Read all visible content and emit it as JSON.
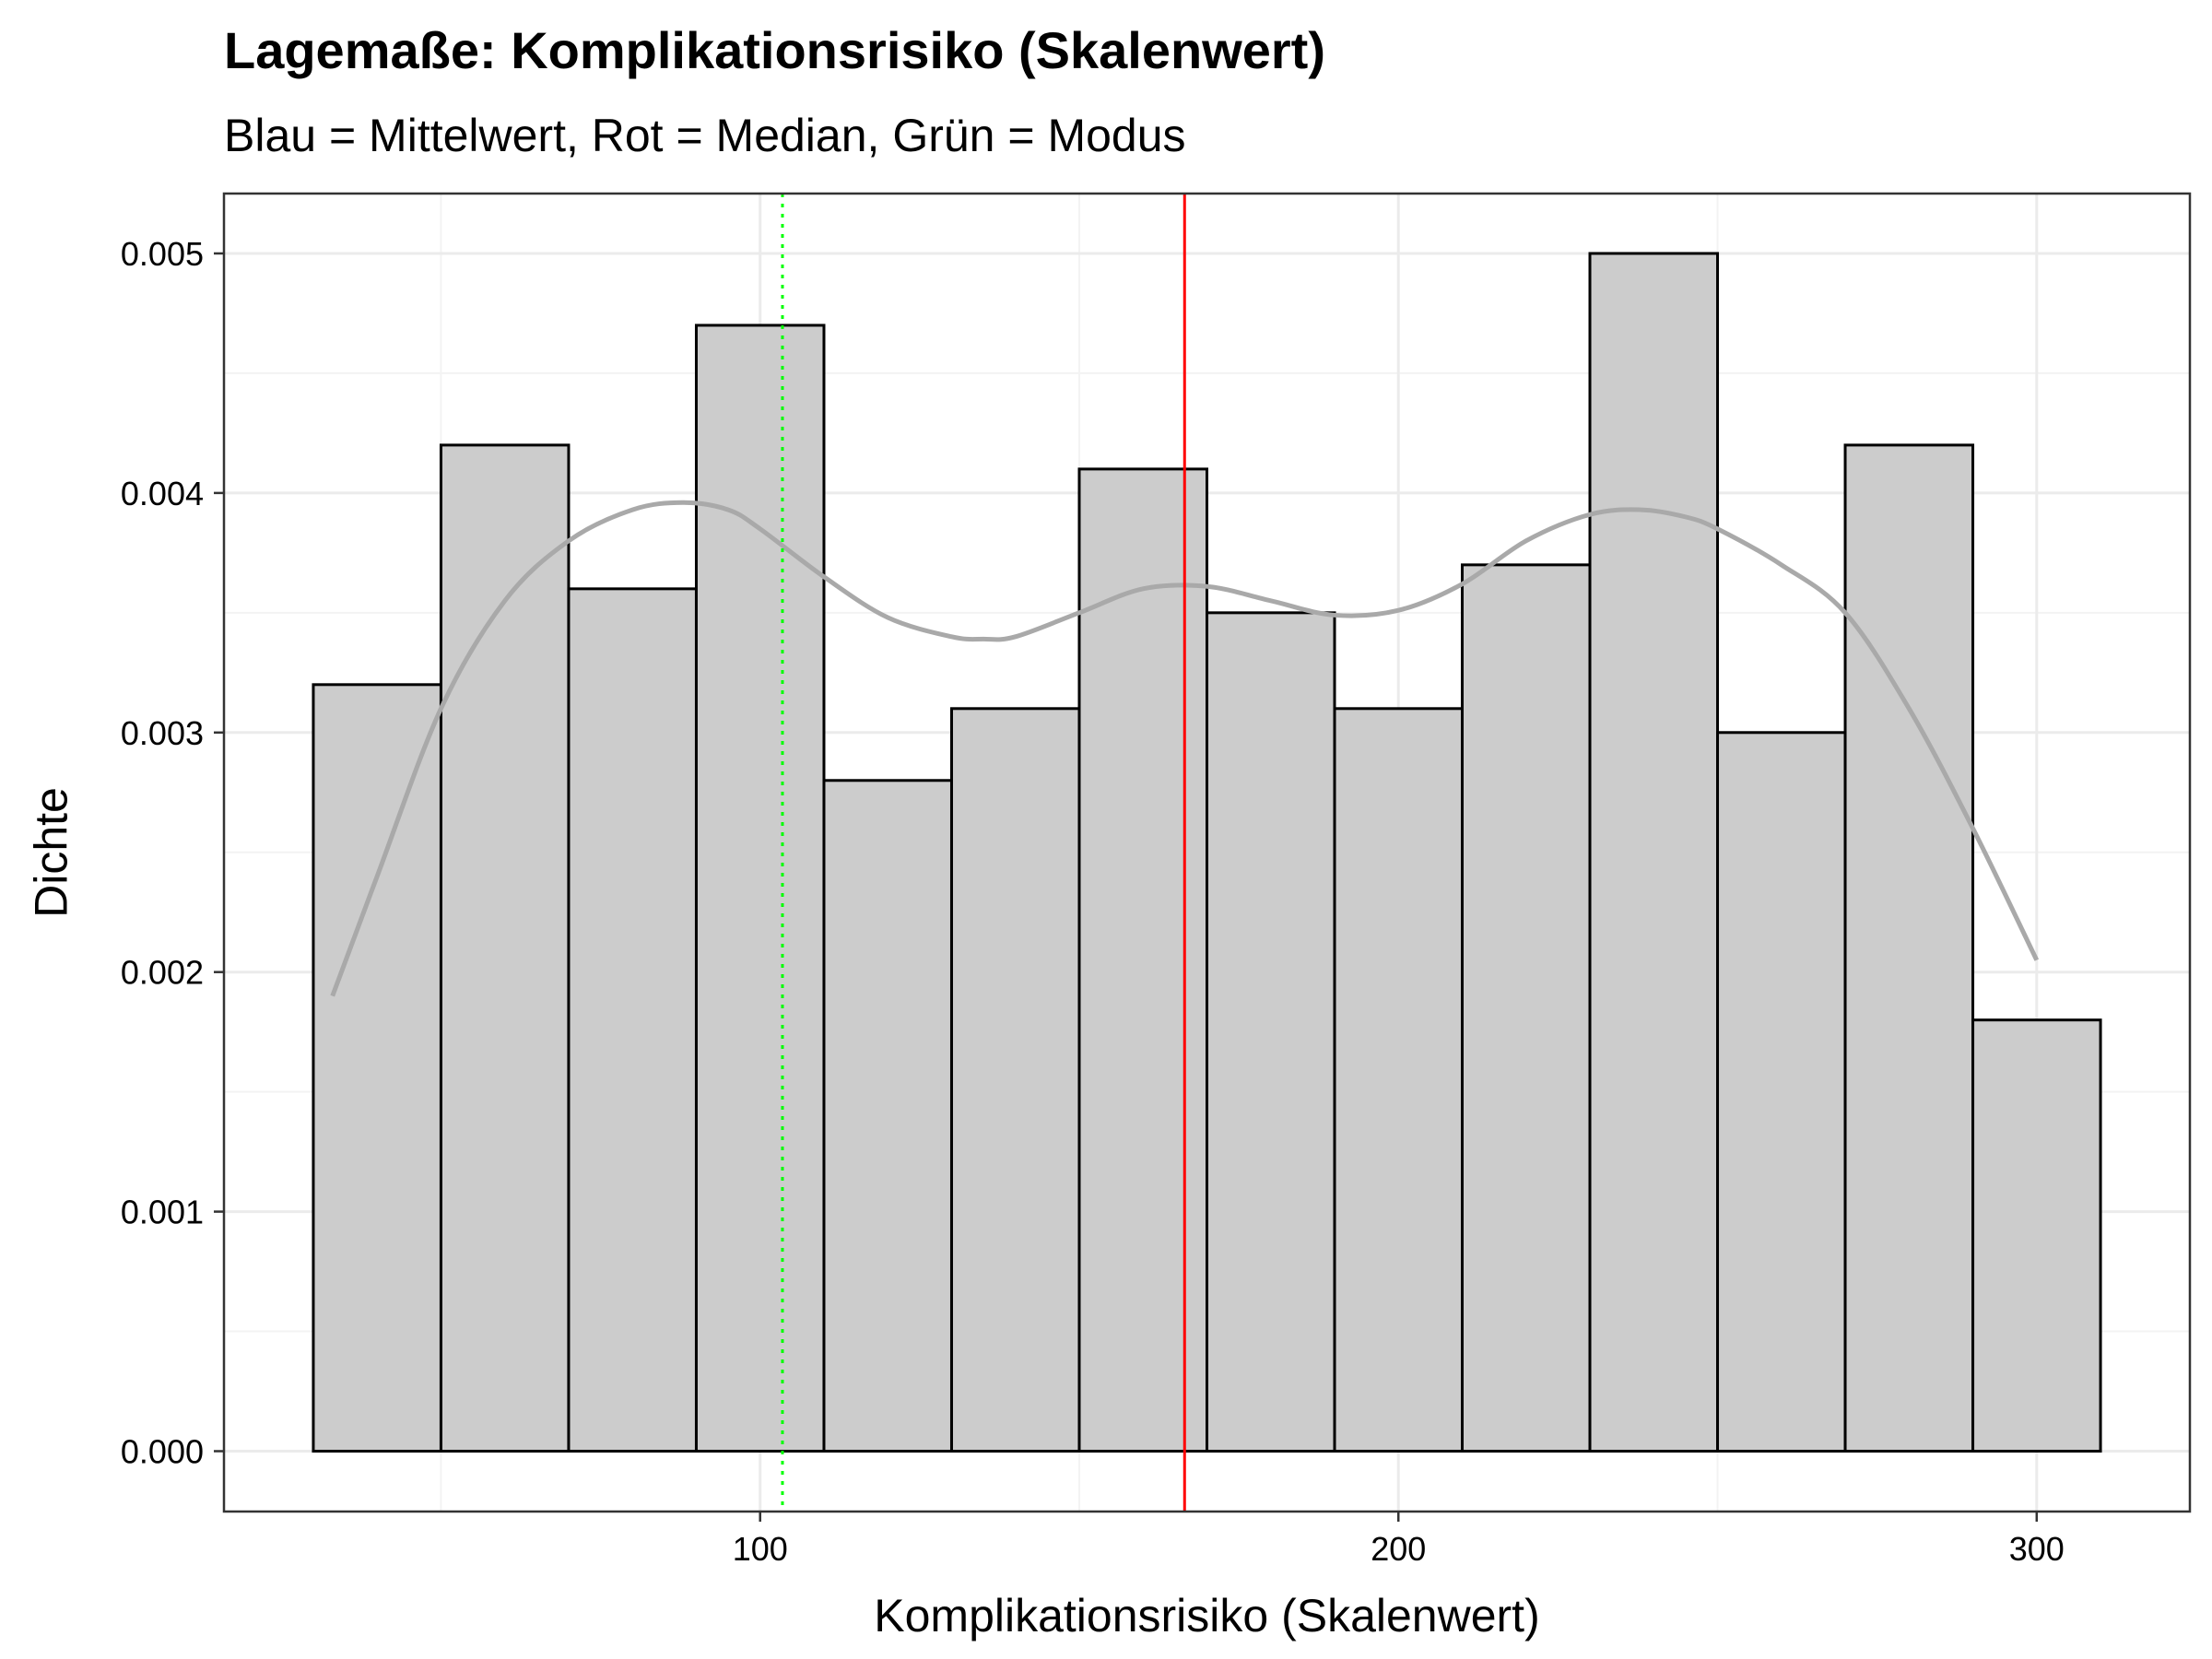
{
  "chart_data": {
    "type": "bar",
    "title": "Lagemaße: Komplikationsrisiko (Skalenwert)",
    "subtitle": "Blau = Mittelwert, Rot = Median, Grün = Modus",
    "xlabel": "Komplikationsrisiko (Skalenwert)",
    "ylabel": "Dichte",
    "xlim": [
      16,
      324
    ],
    "ylim": [
      -0.000252,
      0.00525
    ],
    "x_ticks": [
      100,
      200,
      300
    ],
    "x_tick_labels": [
      "100",
      "200",
      "300"
    ],
    "y_ticks": [
      0,
      0.001,
      0.002,
      0.003,
      0.004,
      0.005
    ],
    "y_tick_labels": [
      "0.000",
      "0.001",
      "0.002",
      "0.003",
      "0.004",
      "0.005"
    ],
    "grid": true,
    "bins": [
      {
        "x0": 30,
        "x1": 50,
        "density": 0.0032
      },
      {
        "x0": 50,
        "x1": 70,
        "density": 0.0042
      },
      {
        "x0": 70,
        "x1": 90,
        "density": 0.0036
      },
      {
        "x0": 90,
        "x1": 110,
        "density": 0.0047
      },
      {
        "x0": 110,
        "x1": 130,
        "density": 0.0028
      },
      {
        "x0": 130,
        "x1": 150,
        "density": 0.0031
      },
      {
        "x0": 150,
        "x1": 170,
        "density": 0.0041
      },
      {
        "x0": 170,
        "x1": 190,
        "density": 0.0035
      },
      {
        "x0": 190,
        "x1": 210,
        "density": 0.0031
      },
      {
        "x0": 210,
        "x1": 230,
        "density": 0.0037
      },
      {
        "x0": 230,
        "x1": 250,
        "density": 0.005
      },
      {
        "x0": 250,
        "x1": 270,
        "density": 0.003
      },
      {
        "x0": 270,
        "x1": 290,
        "density": 0.0042
      },
      {
        "x0": 290,
        "x1": 310,
        "density": 0.0018
      }
    ],
    "density_curve": {
      "x": [
        33,
        40,
        50,
        60,
        70,
        80,
        88,
        95,
        100,
        110,
        120,
        130,
        135,
        140,
        150,
        160,
        170,
        180,
        190,
        200,
        210,
        220,
        230,
        238,
        245,
        250,
        260,
        270,
        280,
        290,
        300
      ],
      "y": [
        0.0019,
        0.0024,
        0.0031,
        0.00355,
        0.0038,
        0.00393,
        0.00396,
        0.00393,
        0.00385,
        0.00365,
        0.00348,
        0.0034,
        0.00339,
        0.0034,
        0.0035,
        0.0036,
        0.00361,
        0.00355,
        0.00349,
        0.00351,
        0.00362,
        0.0038,
        0.00391,
        0.00393,
        0.0039,
        0.00385,
        0.0037,
        0.0035,
        0.0031,
        0.0026,
        0.00205
      ]
    },
    "vlines": [
      {
        "x": 103.5,
        "color": "#00ff00",
        "style": "dotted"
      },
      {
        "x": 166.5,
        "color": "#ff0000",
        "style": "solid"
      }
    ],
    "colors": {
      "bar_fill": "#cccccc",
      "bar_stroke": "#000000",
      "curve": "#a9a9a9",
      "grid_major": "#ebebeb",
      "grid_minor": "#f3f3f3",
      "panel_border": "#333333"
    }
  }
}
